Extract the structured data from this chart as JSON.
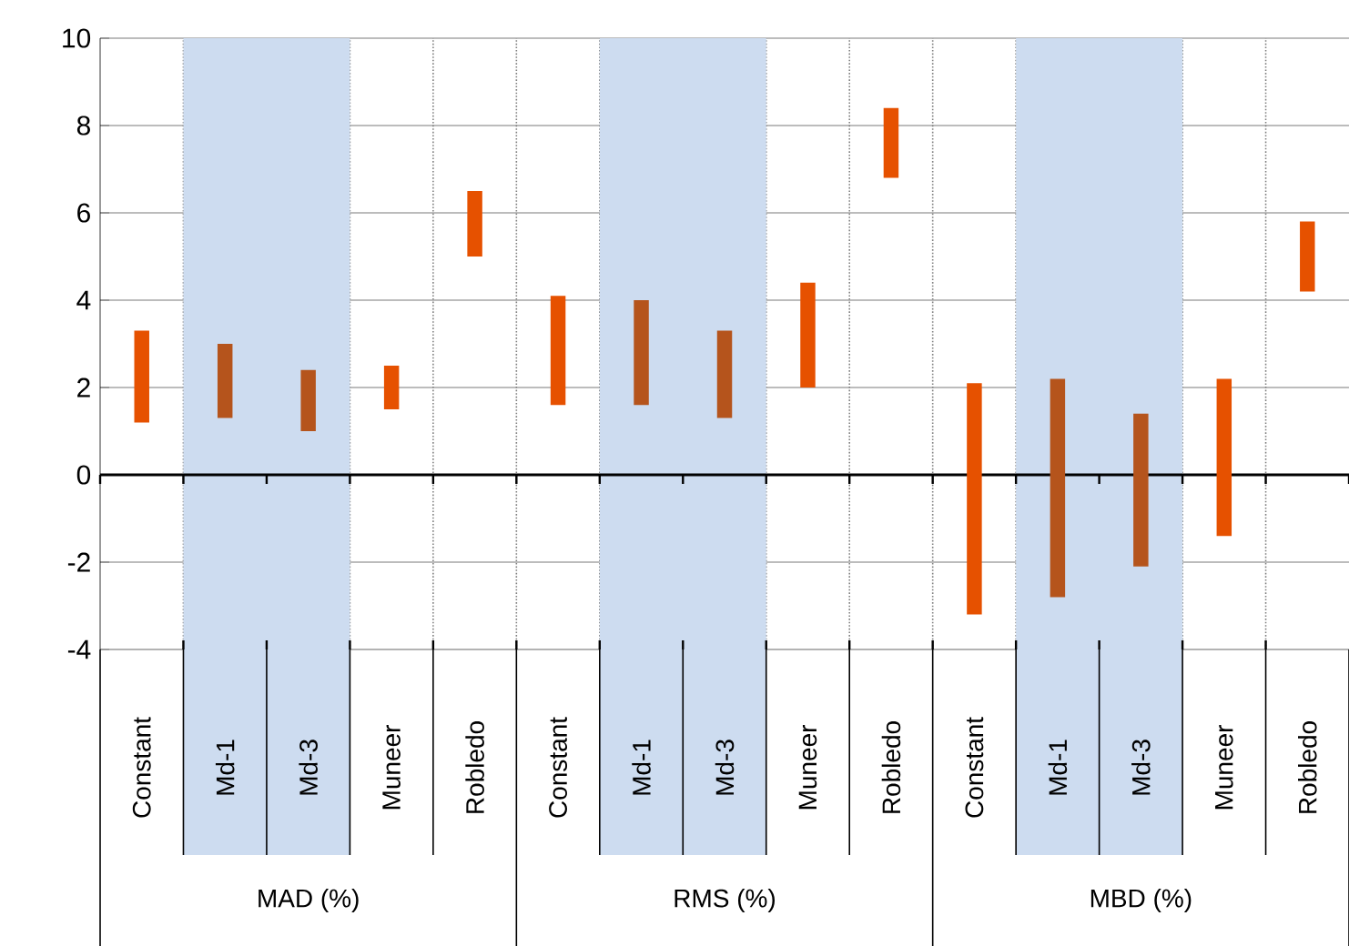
{
  "chart_data": {
    "type": "bar",
    "categories": [
      "Constant",
      "Md-1",
      "Md-3",
      "Muneer",
      "Robledo",
      "Constant",
      "Md-1",
      "Md-3",
      "Muneer",
      "Robledo",
      "Constant",
      "Md-1",
      "Md-3",
      "Muneer",
      "Robledo"
    ],
    "base": [
      1.2,
      1.3,
      1.0,
      1.5,
      5.0,
      1.6,
      1.6,
      1.3,
      2.0,
      6.8,
      -3.2,
      -2.8,
      -2.1,
      -1.4,
      4.2
    ],
    "values": [
      2.1,
      1.7,
      1.4,
      1.0,
      1.5,
      2.5,
      2.4,
      2.0,
      2.4,
      1.6,
      5.3,
      5.0,
      3.5,
      3.6,
      1.6
    ],
    "colors": [
      "#e65100",
      "#b5541c",
      "#b5541c",
      "#e65100",
      "#e65100",
      "#e65100",
      "#b5541c",
      "#b5541c",
      "#e65100",
      "#e65100",
      "#e65100",
      "#b5541c",
      "#b5541c",
      "#e65100",
      "#e65100"
    ],
    "ylim": [
      -4,
      10
    ],
    "yticks": [
      -4,
      -2,
      0,
      2,
      4,
      6,
      8,
      10
    ],
    "grid": true,
    "annotations": [
      "MAD (%)",
      "RMS (%)",
      "MBD (%)"
    ]
  }
}
